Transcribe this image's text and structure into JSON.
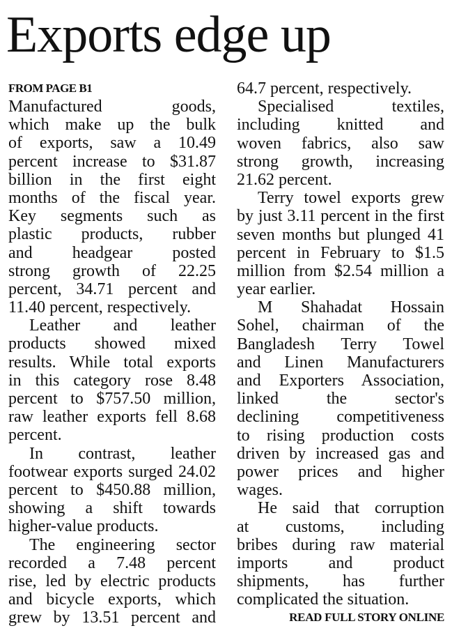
{
  "headline": "Exports edge up",
  "kicker": "FROM PAGE B1",
  "read_more": "READ FULL STORY ONLINE",
  "columns": [
    {
      "paragraphs": [
        {
          "indent": false,
          "lines": [
            "Manufactured goods,",
            "which make up the bulk",
            "of exports, saw a 10.49",
            "percent increase to $31.87",
            "billion in the first eight",
            "months of the fiscal year.",
            "Key segments such as",
            "plastic products, rubber",
            "and headgear posted",
            "strong growth of 22.25",
            "percent, 34.71 percent and",
            "11.40 percent, respectively."
          ]
        },
        {
          "indent": true,
          "lines": [
            "Leather and leather",
            "products showed mixed",
            "results. While total exports",
            "in this category rose 8.48",
            "percent to $757.50 million,",
            "raw leather exports fell 8.68",
            "percent."
          ]
        },
        {
          "indent": true,
          "lines": [
            "In contrast, leather",
            "footwear exports surged 24.02",
            "percent to $450.88 million,",
            "showing a shift towards",
            "higher-value products."
          ]
        },
        {
          "indent": true,
          "continues": true,
          "lines": [
            "The engineering sector",
            "recorded a 7.48 percent",
            "rise, led by electric products",
            "and bicycle exports, which",
            "grew by 13.51 percent and"
          ]
        }
      ]
    },
    {
      "paragraphs": [
        {
          "indent": false,
          "lines": [
            "64.7 percent, respectively."
          ]
        },
        {
          "indent": true,
          "lines": [
            "Specialised textiles,",
            "including knitted and",
            "woven fabrics, also saw",
            "strong growth, increasing",
            "21.62 percent."
          ]
        },
        {
          "indent": true,
          "lines": [
            "Terry towel exports grew",
            "by just 3.11 percent in the first",
            "seven months but plunged 41",
            "percent in February to $1.5",
            "million from $2.54 million a",
            "year earlier."
          ]
        },
        {
          "indent": true,
          "lines": [
            "M Shahadat Hossain",
            "Sohel, chairman of the",
            "Bangladesh Terry Towel",
            "and Linen Manufacturers",
            "and Exporters Association,",
            "linked the sector's",
            "declining competitiveness",
            "to rising production costs",
            "driven by increased gas and",
            "power prices and higher",
            "wages."
          ]
        },
        {
          "indent": true,
          "lines": [
            "He said that corruption",
            "at customs, including",
            "bribes during raw material",
            "imports and product",
            "shipments, has further",
            "complicated the situation."
          ]
        }
      ]
    }
  ]
}
